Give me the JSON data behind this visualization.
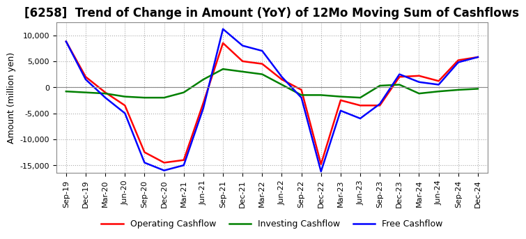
{
  "title": "[6258]  Trend of Change in Amount (YoY) of 12Mo Moving Sum of Cashflows",
  "ylabel": "Amount (million yen)",
  "ylim": [
    -16500,
    12500
  ],
  "yticks": [
    -15000,
    -10000,
    -5000,
    0,
    5000,
    10000
  ],
  "x_labels": [
    "Sep-19",
    "Dec-19",
    "Mar-20",
    "Jun-20",
    "Sep-20",
    "Dec-20",
    "Mar-21",
    "Jun-21",
    "Sep-21",
    "Dec-21",
    "Mar-22",
    "Jun-22",
    "Sep-22",
    "Dec-22",
    "Mar-23",
    "Jun-23",
    "Sep-23",
    "Dec-23",
    "Mar-24",
    "Jun-24",
    "Sep-24",
    "Dec-24"
  ],
  "operating": [
    8800,
    2000,
    -1000,
    -3500,
    -12500,
    -14500,
    -14000,
    -3000,
    8500,
    5000,
    4500,
    1500,
    -500,
    -14800,
    -2500,
    -3500,
    -3500,
    2000,
    2200,
    1200,
    5200,
    5800
  ],
  "investing": [
    -800,
    -1000,
    -1200,
    -1800,
    -2000,
    -2000,
    -1000,
    1500,
    3500,
    3000,
    2500,
    500,
    -1500,
    -1500,
    -1800,
    -2000,
    300,
    500,
    -1200,
    -800,
    -500,
    -300
  ],
  "free": [
    8800,
    1500,
    -2000,
    -5000,
    -14500,
    -16000,
    -15000,
    -4000,
    11200,
    8000,
    7000,
    2000,
    -2000,
    -16200,
    -4500,
    -6000,
    -3200,
    2500,
    1000,
    500,
    4800,
    5800
  ],
  "operating_color": "#ff0000",
  "investing_color": "#008000",
  "free_color": "#0000ff",
  "background_color": "#ffffff",
  "grid_color": "#aaaaaa",
  "title_fontsize": 12,
  "label_fontsize": 9,
  "tick_fontsize": 8
}
